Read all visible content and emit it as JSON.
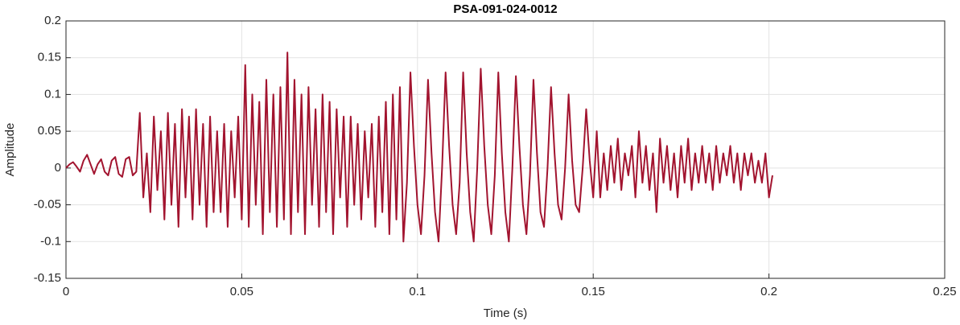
{
  "chart_data": {
    "type": "line",
    "title": "PSA-091-024-0012",
    "xlabel": "Time (s)",
    "ylabel": "Amplitude",
    "xlim": [
      0,
      0.25
    ],
    "ylim": [
      -0.15,
      0.2
    ],
    "xticks": [
      0,
      0.05,
      0.1,
      0.15,
      0.2,
      0.25
    ],
    "yticks": [
      0.2,
      0.15,
      0.1,
      0.05,
      0,
      -0.05,
      -0.1,
      -0.15
    ],
    "grid": true,
    "x": [
      0,
      0.001,
      0.002,
      0.003,
      0.004,
      0.005,
      0.006,
      0.007,
      0.008,
      0.009,
      0.01,
      0.011,
      0.012,
      0.013,
      0.014,
      0.015,
      0.016,
      0.017,
      0.018,
      0.019,
      0.02,
      0.021,
      0.022,
      0.023,
      0.024,
      0.025,
      0.026,
      0.027,
      0.028,
      0.029,
      0.03,
      0.031,
      0.032,
      0.033,
      0.034,
      0.035,
      0.036,
      0.037,
      0.038,
      0.039,
      0.04,
      0.041,
      0.042,
      0.043,
      0.044,
      0.045,
      0.046,
      0.047,
      0.048,
      0.049,
      0.05,
      0.051,
      0.052,
      0.053,
      0.054,
      0.055,
      0.056,
      0.057,
      0.058,
      0.059,
      0.06,
      0.061,
      0.062,
      0.063,
      0.064,
      0.065,
      0.066,
      0.067,
      0.068,
      0.069,
      0.07,
      0.071,
      0.072,
      0.073,
      0.074,
      0.075,
      0.076,
      0.077,
      0.078,
      0.079,
      0.08,
      0.081,
      0.082,
      0.083,
      0.084,
      0.085,
      0.086,
      0.087,
      0.088,
      0.089,
      0.09,
      0.091,
      0.092,
      0.093,
      0.094,
      0.095,
      0.096,
      0.097,
      0.098,
      0.099,
      0.1,
      0.101,
      0.102,
      0.103,
      0.104,
      0.105,
      0.106,
      0.107,
      0.108,
      0.109,
      0.11,
      0.111,
      0.112,
      0.113,
      0.114,
      0.115,
      0.116,
      0.117,
      0.118,
      0.119,
      0.12,
      0.121,
      0.122,
      0.123,
      0.124,
      0.125,
      0.126,
      0.127,
      0.128,
      0.129,
      0.13,
      0.131,
      0.132,
      0.133,
      0.134,
      0.135,
      0.136,
      0.137,
      0.138,
      0.139,
      0.14,
      0.141,
      0.142,
      0.143,
      0.144,
      0.145,
      0.146,
      0.147,
      0.148,
      0.149,
      0.15,
      0.151,
      0.152,
      0.153,
      0.154,
      0.155,
      0.156,
      0.157,
      0.158,
      0.159,
      0.16,
      0.161,
      0.162,
      0.163,
      0.164,
      0.165,
      0.166,
      0.167,
      0.168,
      0.169,
      0.17,
      0.171,
      0.172,
      0.173,
      0.174,
      0.175,
      0.176,
      0.177,
      0.178,
      0.179,
      0.18,
      0.181,
      0.182,
      0.183,
      0.184,
      0.185,
      0.186,
      0.187,
      0.188,
      0.189,
      0.19,
      0.191,
      0.192,
      0.193,
      0.194,
      0.195,
      0.196,
      0.197,
      0.198,
      0.199,
      0.2,
      0.201
    ],
    "series": [
      {
        "name": "Amplitude",
        "color": "#a2142f",
        "values": [
          0,
          0.005,
          0.008,
          0.002,
          -0.005,
          0.01,
          0.018,
          0.005,
          -0.008,
          0.005,
          0.012,
          -0.005,
          -0.01,
          0.01,
          0.015,
          -0.008,
          -0.012,
          0.012,
          0.015,
          -0.01,
          -0.005,
          0.075,
          -0.04,
          0.02,
          -0.06,
          0.07,
          -0.03,
          0.05,
          -0.07,
          0.075,
          -0.05,
          0.06,
          -0.08,
          0.08,
          -0.04,
          0.07,
          -0.07,
          0.08,
          -0.05,
          0.06,
          -0.08,
          0.07,
          -0.06,
          0.05,
          -0.06,
          0.06,
          -0.08,
          0.05,
          -0.04,
          0.07,
          -0.07,
          0.14,
          -0.08,
          0.1,
          -0.05,
          0.09,
          -0.09,
          0.12,
          -0.06,
          0.1,
          -0.08,
          0.11,
          -0.07,
          0.157,
          -0.09,
          0.12,
          -0.06,
          0.1,
          -0.09,
          0.11,
          -0.05,
          0.08,
          -0.08,
          0.1,
          -0.06,
          0.09,
          -0.09,
          0.08,
          -0.04,
          0.07,
          -0.08,
          0.07,
          -0.05,
          0.06,
          -0.07,
          0.05,
          -0.04,
          0.06,
          -0.08,
          0.07,
          -0.06,
          0.09,
          -0.09,
          0.1,
          -0.07,
          0.11,
          -0.1,
          -0.02,
          0.13,
          0.03,
          -0.05,
          -0.09,
          -0.01,
          0.12,
          0.02,
          -0.06,
          -0.1,
          0,
          0.13,
          0.03,
          -0.05,
          -0.09,
          -0.02,
          0.13,
          0.02,
          -0.06,
          -0.1,
          0,
          0.135,
          0.03,
          -0.05,
          -0.09,
          -0.01,
          0.13,
          0.02,
          -0.06,
          -0.1,
          0,
          0.125,
          0.03,
          -0.05,
          -0.09,
          -0.01,
          0.12,
          0.02,
          -0.06,
          -0.08,
          0,
          0.11,
          0.02,
          -0.05,
          -0.07,
          0,
          0.1,
          0.01,
          -0.05,
          -0.06,
          0,
          0.08,
          0.01,
          -0.04,
          0.05,
          -0.04,
          0.02,
          -0.03,
          0.03,
          -0.02,
          0.04,
          -0.03,
          0.02,
          -0.01,
          0.03,
          -0.04,
          0.05,
          -0.02,
          0.03,
          -0.03,
          0.02,
          -0.06,
          0.04,
          -0.02,
          0.03,
          -0.03,
          0.02,
          -0.04,
          0.03,
          -0.02,
          0.04,
          -0.03,
          0.02,
          -0.02,
          0.03,
          -0.02,
          0.02,
          -0.03,
          0.03,
          -0.02,
          0.02,
          -0.01,
          0.03,
          -0.02,
          0.02,
          -0.03,
          0.02,
          -0.01,
          0.02,
          -0.02,
          0.01,
          -0.02,
          0.02,
          -0.04,
          -0.01
        ]
      }
    ]
  }
}
